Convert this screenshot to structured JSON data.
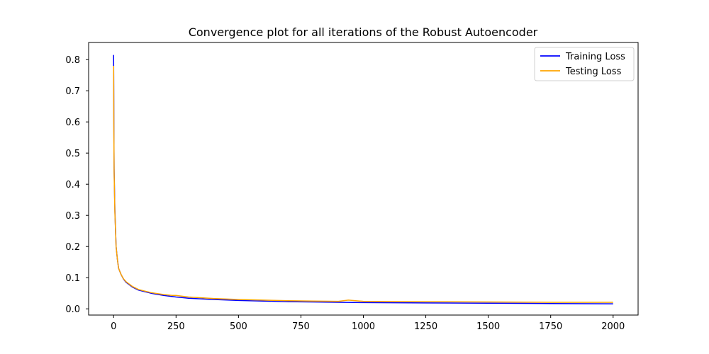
{
  "chart_data": {
    "type": "line",
    "title": "Convergence plot for all iterations of the Robust Autoencoder",
    "xlabel": "",
    "ylabel": "",
    "xlim": [
      -100,
      2100
    ],
    "ylim": [
      -0.02,
      0.855
    ],
    "xticks": [
      0,
      250,
      500,
      750,
      1000,
      1250,
      1500,
      1750,
      2000
    ],
    "xtick_labels": [
      "0",
      "250",
      "500",
      "750",
      "1000",
      "1250",
      "1500",
      "1750",
      "2000"
    ],
    "yticks": [
      0.0,
      0.1,
      0.2,
      0.3,
      0.4,
      0.5,
      0.6,
      0.7,
      0.8
    ],
    "ytick_labels": [
      "0.0",
      "0.1",
      "0.2",
      "0.3",
      "0.4",
      "0.5",
      "0.6",
      "0.7",
      "0.8"
    ],
    "grid": false,
    "legend_position": "top-right",
    "series": [
      {
        "name": "Training Loss",
        "color": "#0000ff",
        "x": [
          0,
          1,
          2,
          5,
          10,
          15,
          20,
          30,
          40,
          50,
          75,
          100,
          150,
          200,
          250,
          300,
          400,
          500,
          600,
          700,
          800,
          900,
          1000,
          1250,
          1500,
          1750,
          2000
        ],
        "y": [
          0.815,
          0.6,
          0.45,
          0.32,
          0.2,
          0.16,
          0.13,
          0.11,
          0.095,
          0.085,
          0.07,
          0.06,
          0.05,
          0.043,
          0.038,
          0.034,
          0.03,
          0.027,
          0.025,
          0.023,
          0.022,
          0.021,
          0.02,
          0.019,
          0.018,
          0.017,
          0.016
        ]
      },
      {
        "name": "Testing Loss",
        "color": "#ffa500",
        "x": [
          0,
          1,
          2,
          5,
          10,
          15,
          20,
          30,
          40,
          50,
          75,
          100,
          150,
          200,
          235,
          250,
          300,
          400,
          500,
          600,
          700,
          800,
          900,
          940,
          1000,
          1250,
          1500,
          1750,
          2000
        ],
        "y": [
          0.78,
          0.58,
          0.44,
          0.31,
          0.2,
          0.16,
          0.13,
          0.11,
          0.096,
          0.087,
          0.072,
          0.062,
          0.052,
          0.046,
          0.043,
          0.043,
          0.038,
          0.033,
          0.03,
          0.028,
          0.026,
          0.025,
          0.024,
          0.028,
          0.024,
          0.023,
          0.022,
          0.021,
          0.021
        ]
      }
    ]
  }
}
